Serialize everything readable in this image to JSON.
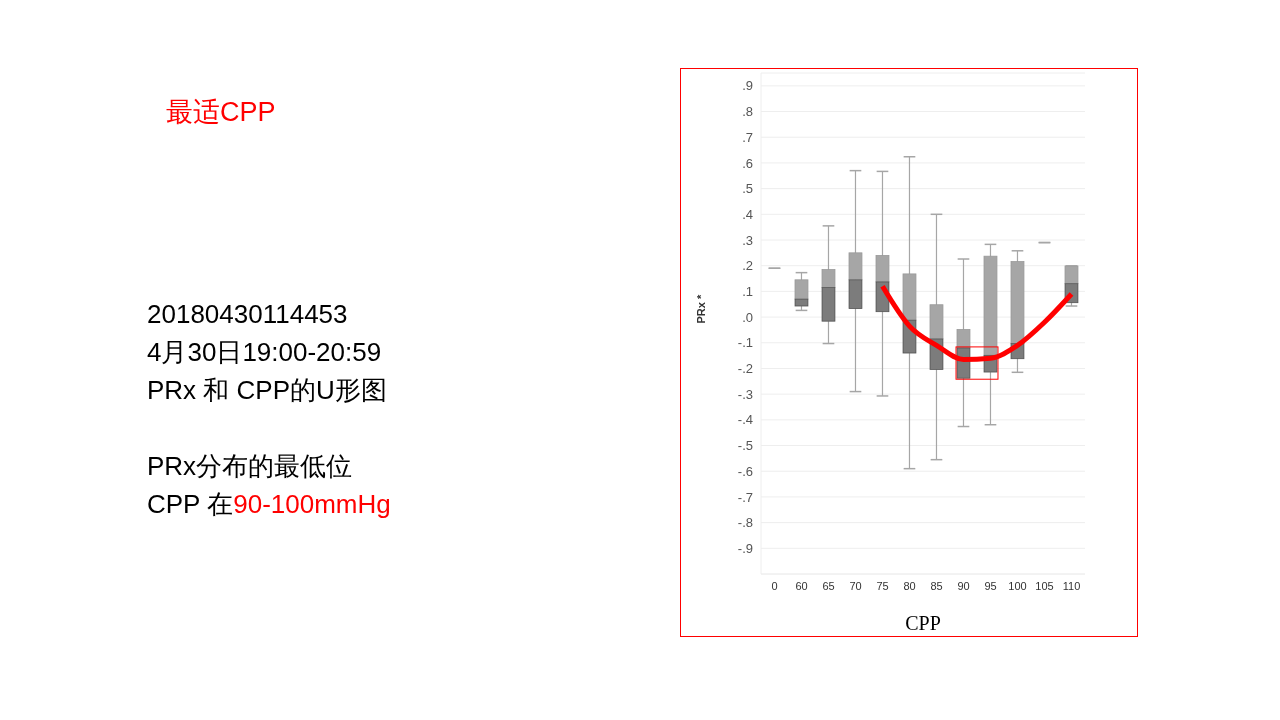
{
  "chart_data": {
    "type": "box",
    "title": "最适CPP",
    "xlabel": "CPP",
    "ylabel": "PRx *",
    "annotations": [
      "20180430114453",
      "4月30日19:00-20:59",
      "PRx 和 CPP的U形图",
      "PRx分布的最低位",
      "CPP 在",
      "90-100mmHg"
    ],
    "categories": [
      "0",
      "60",
      "65",
      "70",
      "75",
      "80",
      "85",
      "90",
      "95",
      "100",
      "105",
      "110"
    ],
    "series": [
      {
        "color": "#a6a6a6",
        "boxes": [
          {
            "low": 0.19,
            "q1": 0.19,
            "median": 0.19,
            "q3": 0.19,
            "high": 0.19
          },
          {
            "low": 0.026,
            "q1": 0.043,
            "median": 0.07,
            "q3": 0.145,
            "high": 0.173
          },
          {
            "low": -0.103,
            "q1": -0.016,
            "median": 0.115,
            "q3": 0.185,
            "high": 0.355
          },
          {
            "low": -0.29,
            "q1": 0.033,
            "median": 0.145,
            "q3": 0.25,
            "high": 0.57
          },
          {
            "low": -0.307,
            "q1": 0.021,
            "median": 0.137,
            "q3": 0.24,
            "high": 0.567
          },
          {
            "low": -0.59,
            "q1": -0.14,
            "median": -0.012,
            "q3": 0.168,
            "high": 0.624
          },
          {
            "low": -0.555,
            "q1": -0.204,
            "median": -0.085,
            "q3": 0.048,
            "high": 0.4
          },
          {
            "low": -0.426,
            "q1": -0.238,
            "median": -0.12,
            "q3": -0.048,
            "high": 0.226
          },
          {
            "low": -0.419,
            "q1": -0.214,
            "median": -0.149,
            "q3": 0.237,
            "high": 0.283
          },
          {
            "low": -0.215,
            "q1": -0.162,
            "median": -0.103,
            "q3": 0.216,
            "high": 0.258
          },
          {
            "low": 0.29,
            "q1": 0.29,
            "median": 0.29,
            "q3": 0.29,
            "high": 0.29
          },
          {
            "low": 0.043,
            "q1": 0.056,
            "median": 0.13,
            "q3": 0.199,
            "high": 0.199
          }
        ]
      },
      {
        "type": "line",
        "color": "#ff0000",
        "x": [
          "75",
          "80",
          "85",
          "90",
          "95",
          "100",
          "105",
          "110"
        ],
        "values": [
          0.12,
          -0.035,
          -0.11,
          -0.165,
          -0.16,
          -0.11,
          -0.02,
          0.09
        ]
      }
    ],
    "ylim": [
      -1,
      0.95
    ],
    "yticks": [
      {
        "value": -0.9,
        "label": "-.9"
      },
      {
        "value": -0.8,
        "label": "-.8"
      },
      {
        "value": -0.7,
        "label": "-.7"
      },
      {
        "value": -0.6,
        "label": "-.6"
      },
      {
        "value": -0.5,
        "label": "-.5"
      },
      {
        "value": -0.4,
        "label": "-.4"
      },
      {
        "value": -0.3,
        "label": "-.3"
      },
      {
        "value": -0.2,
        "label": "-.2"
      },
      {
        "value": -0.1,
        "label": "-.1"
      },
      {
        "value": 0,
        "label": ".0"
      },
      {
        "value": 0.1,
        "label": ".1"
      },
      {
        "value": 0.2,
        "label": ".2"
      },
      {
        "value": 0.3,
        "label": ".3"
      },
      {
        "value": 0.4,
        "label": ".4"
      },
      {
        "value": 0.5,
        "label": ".5"
      },
      {
        "value": 0.6,
        "label": ".6"
      },
      {
        "value": 0.7,
        "label": ".7"
      },
      {
        "value": 0.8,
        "label": ".8"
      },
      {
        "value": 0.9,
        "label": ".9"
      }
    ],
    "grid": "y",
    "marker": "none",
    "line_style": "solid"
  }
}
